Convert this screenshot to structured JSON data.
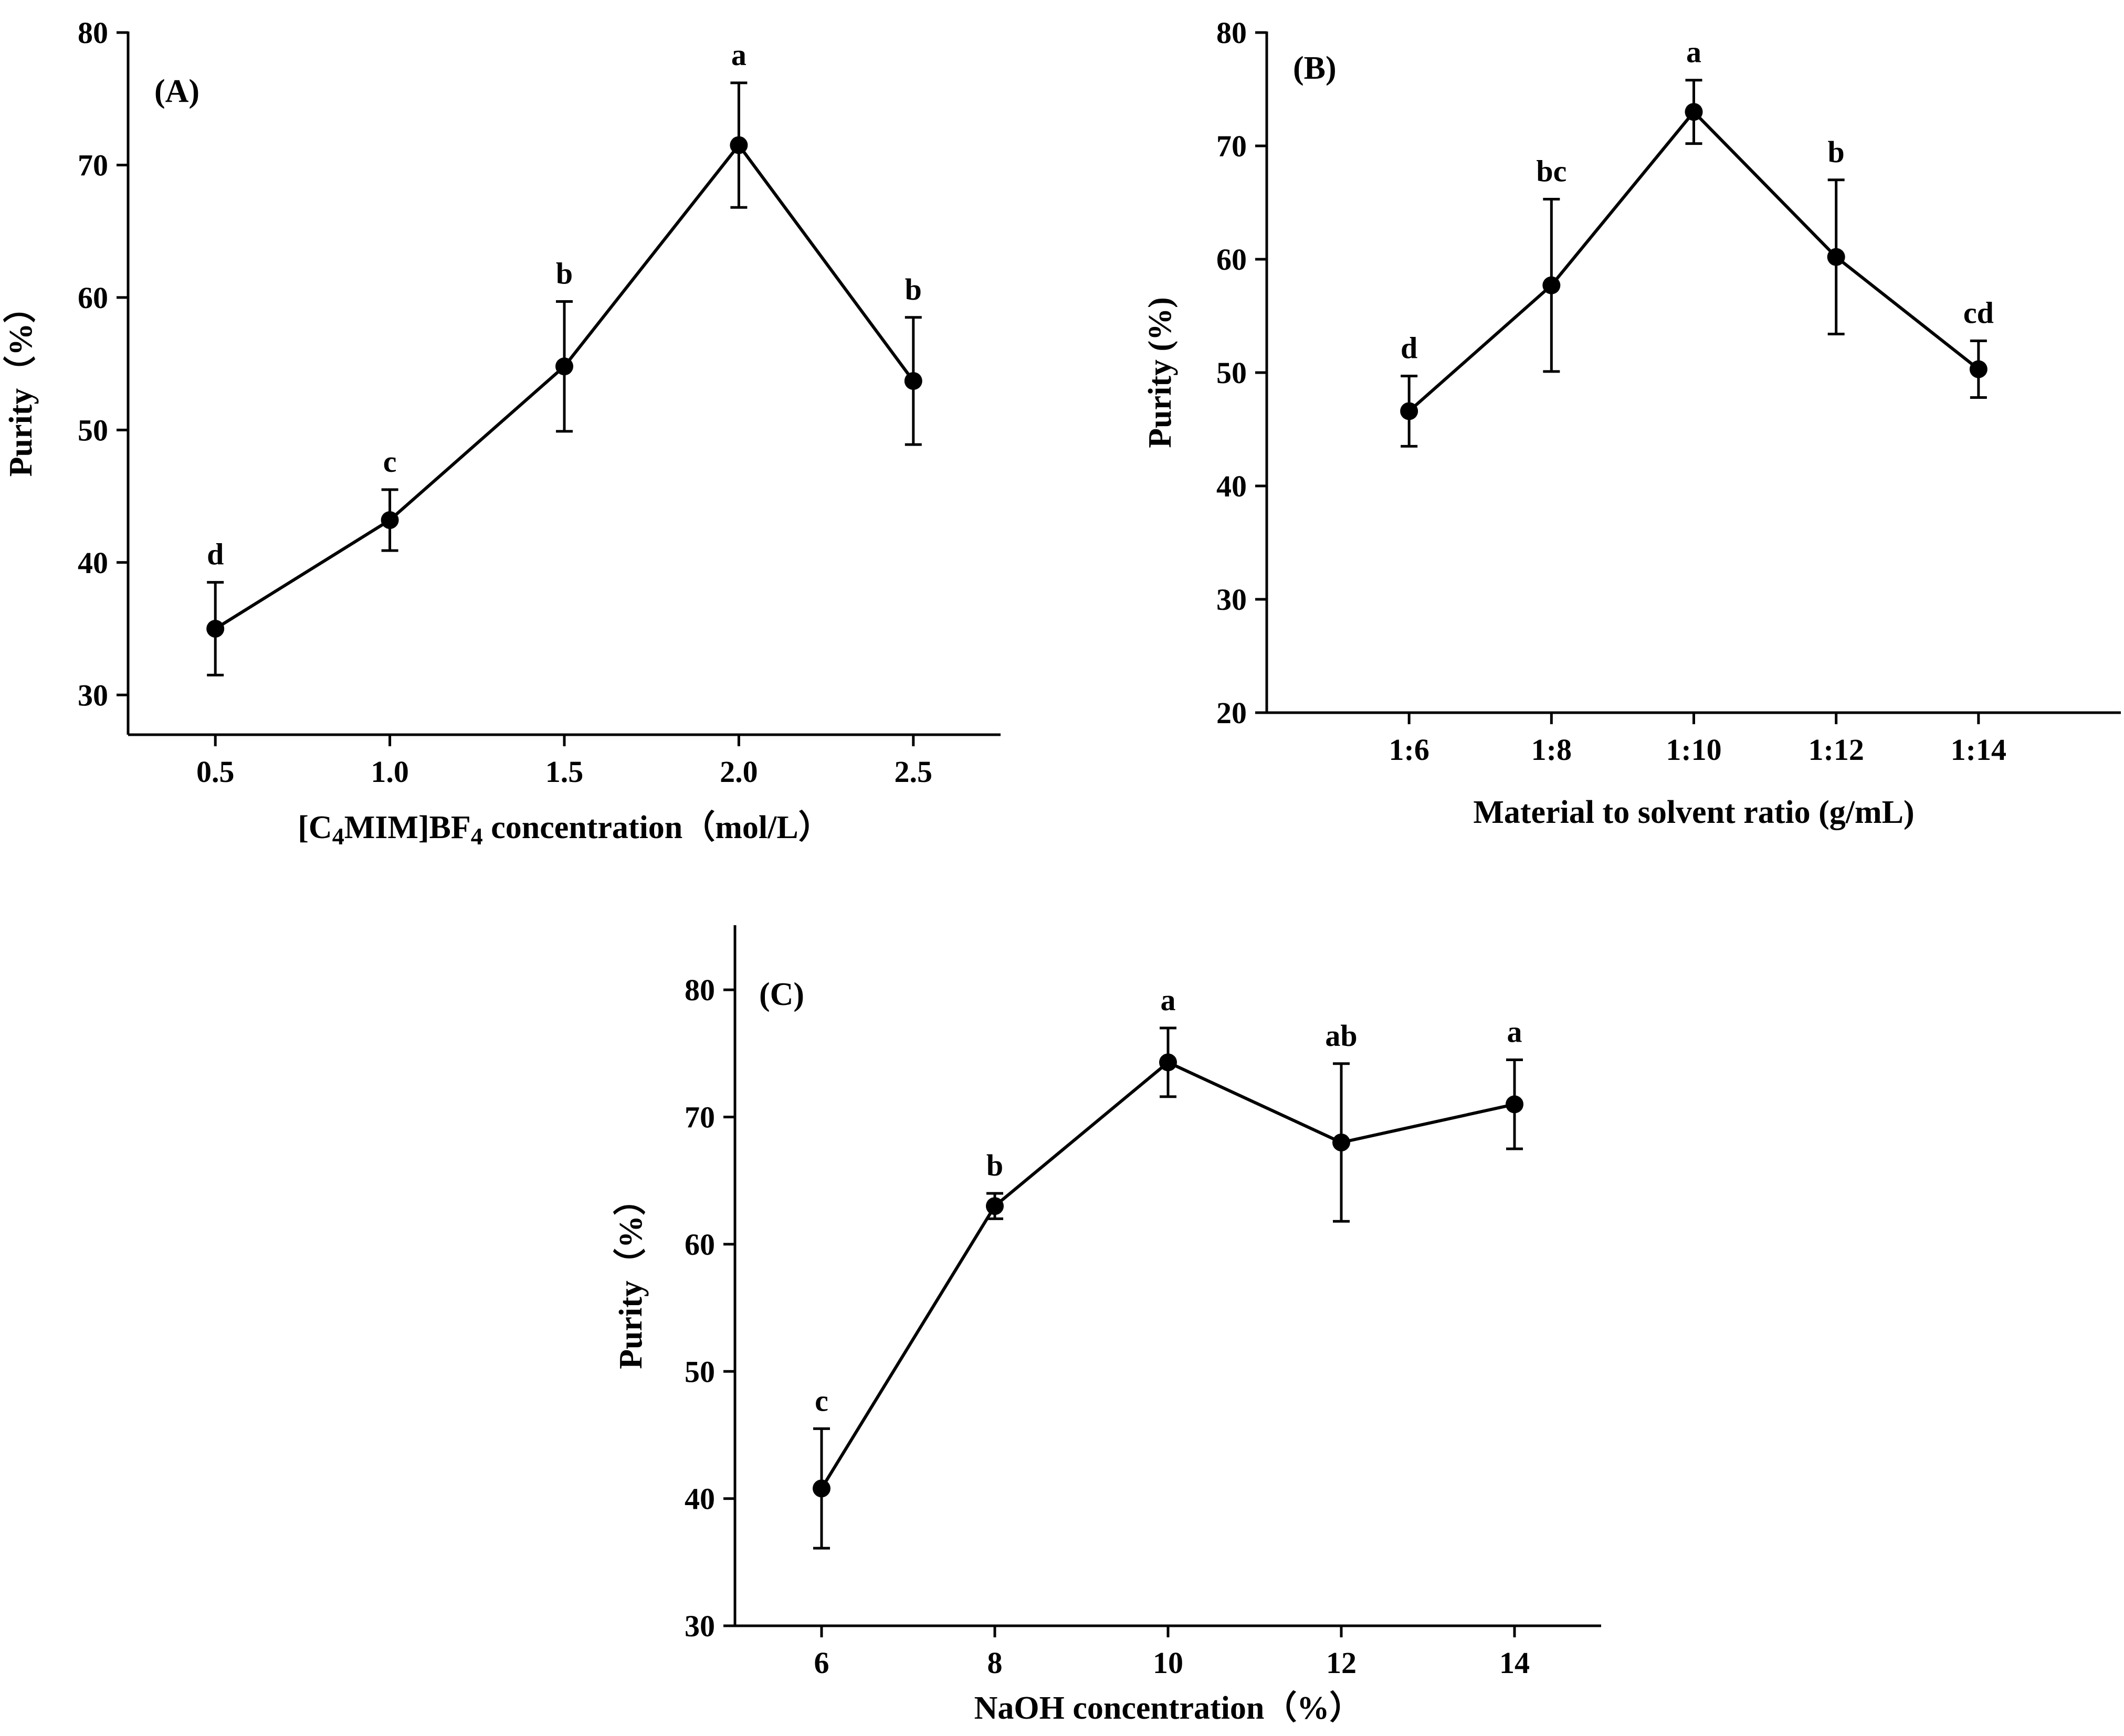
{
  "chart_data": [
    {
      "type": "line",
      "panel_label": "(A)",
      "categories": [
        "0.5",
        "1.0",
        "1.5",
        "2.0",
        "2.5"
      ],
      "series": [
        {
          "name": "Purity",
          "values": [
            35.0,
            43.2,
            54.8,
            71.5,
            53.7
          ],
          "errors": [
            3.5,
            2.3,
            4.9,
            4.7,
            4.8
          ],
          "labels": [
            "d",
            "c",
            "b",
            "a",
            "b"
          ]
        }
      ],
      "xlabel_parts": [
        {
          "text": "[C",
          "sub": false
        },
        {
          "text": "4",
          "sub": true
        },
        {
          "text": "MIM]BF",
          "sub": false
        },
        {
          "text": "4",
          "sub": true
        },
        {
          "text": " concentration（mol/L）",
          "sub": false
        }
      ],
      "ylabel": "Purity（%）",
      "ylim": [
        27,
        80
      ],
      "yticks": [
        30,
        40,
        50,
        60,
        70,
        80
      ],
      "xmargin": 0.5,
      "grid": false,
      "legend": "none"
    },
    {
      "type": "line",
      "panel_label": "(B)",
      "categories": [
        "1:6",
        "1:8",
        "1:10",
        "1:12",
        "1:14"
      ],
      "series": [
        {
          "name": "Purity",
          "values": [
            46.6,
            57.7,
            73.0,
            60.2,
            50.3
          ],
          "errors": [
            3.1,
            7.6,
            2.8,
            6.8,
            2.5
          ],
          "labels": [
            "d",
            "bc",
            "a",
            "b",
            "cd"
          ]
        }
      ],
      "xlabel": "Material to solvent ratio (g/mL)",
      "ylabel": "Purity (%)",
      "ylim": [
        20,
        80
      ],
      "yticks": [
        20,
        30,
        40,
        50,
        60,
        70,
        80
      ],
      "xmargin": 1.0,
      "grid": false,
      "legend": "none"
    },
    {
      "type": "line",
      "panel_label": "(C)",
      "categories": [
        "6",
        "8",
        "10",
        "12",
        "14"
      ],
      "series": [
        {
          "name": "Purity",
          "values": [
            40.8,
            63.0,
            74.3,
            68.0,
            71.0
          ],
          "errors": [
            4.7,
            1.0,
            2.7,
            6.2,
            3.5
          ],
          "labels": [
            "c",
            "b",
            "a",
            "ab",
            "a"
          ]
        }
      ],
      "xlabel": "NaOH concentration（%）",
      "ylabel": "Purity（%）",
      "ylim": [
        30,
        85
      ],
      "yticks": [
        30,
        40,
        50,
        60,
        70,
        80
      ],
      "xmargin": 0.5,
      "grid": false,
      "legend": "none"
    }
  ]
}
